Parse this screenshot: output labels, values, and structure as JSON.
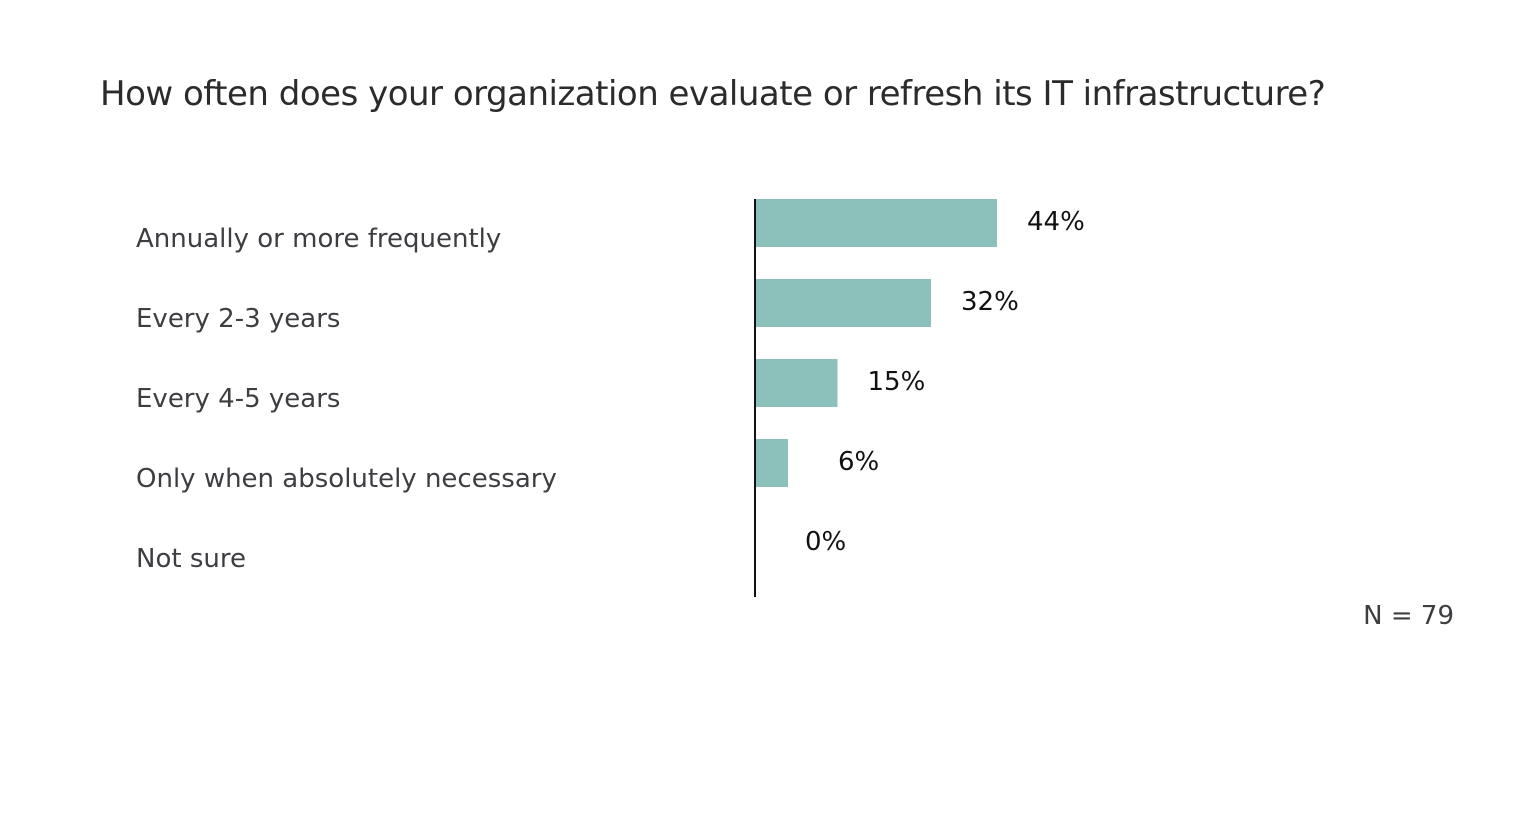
{
  "chart_data": {
    "type": "bar",
    "orientation": "horizontal",
    "title": "How often does your organization evaluate or refresh its IT infrastructure?",
    "categories": [
      "Annually or more frequently",
      "Every 2-3 years",
      "Every 4-5 years",
      "Only when absolutely necessary",
      "Not sure"
    ],
    "values": [
      44,
      32,
      15,
      6,
      0
    ],
    "value_labels": [
      "44%",
      "32%",
      "15%",
      "6%",
      "0%"
    ],
    "xlim": [
      0,
      100
    ],
    "grid": false,
    "legend": "none",
    "bar_color": "#8cc0bb",
    "axis_color": "#111111",
    "footnote": "N = 79"
  }
}
